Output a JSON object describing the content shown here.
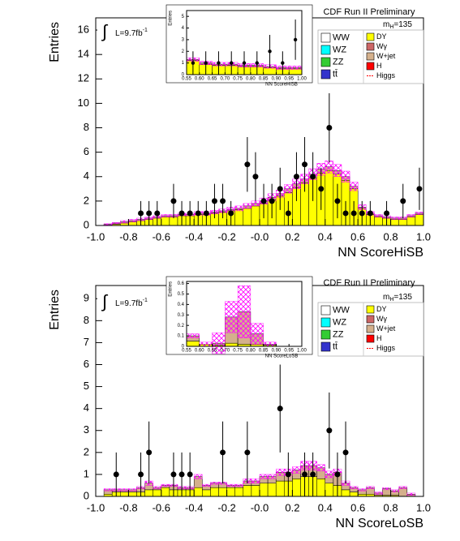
{
  "chart_data": [
    {
      "type": "histogram",
      "title": "CDF Run II Preliminary",
      "ylabel": "Entries",
      "xlabel": "NN ScoreHiSB",
      "integral": "∫",
      "lumi": "L=9.7fb",
      "lumi_exp": "-1",
      "mass": "m",
      "mass_sub": "H",
      "mass_value": "=135",
      "bins": [
        -1,
        -0.95,
        -0.9,
        -0.85,
        -0.8,
        -0.75,
        -0.7,
        -0.65,
        -0.6,
        -0.55,
        -0.5,
        -0.45,
        -0.4,
        -0.35,
        -0.3,
        -0.25,
        -0.2,
        -0.15,
        -0.1,
        -0.05,
        0,
        0.05,
        0.1,
        0.15,
        0.2,
        0.25,
        0.3,
        0.35,
        0.4,
        0.45,
        0.5,
        0.55,
        0.6,
        0.65,
        0.7,
        0.75,
        0.8,
        0.85,
        0.9,
        0.95,
        1
      ],
      "xlim": [
        -1,
        1
      ],
      "ylim": [
        0,
        17
      ],
      "xticks": [
        {
          "value": -1,
          "label": "-1.0"
        },
        -0.8,
        -0.6,
        -0.4,
        -0.2,
        {
          "value": 0,
          "label": "-0.0"
        },
        0.2,
        0.4,
        0.6,
        0.8,
        {
          "value": 1,
          "label": "1.0"
        }
      ],
      "yticks": [
        0,
        2,
        4,
        6,
        8,
        10,
        12,
        14,
        16
      ],
      "series": [
        {
          "color": "#ffff00",
          "values": [
            0,
            0.05,
            0.1,
            0.2,
            0.3,
            0.4,
            0.5,
            0.6,
            0.7,
            0.7,
            0.8,
            0.8,
            0.9,
            0.9,
            1.0,
            1.1,
            1.2,
            1.3,
            1.4,
            1.6,
            1.8,
            2.1,
            2.4,
            2.7,
            3.1,
            3.5,
            3.9,
            4.3,
            4.5,
            4.2,
            3.7,
            3.0,
            1.4,
            0.9,
            0.7,
            0.6,
            0.5,
            0.5,
            0.7,
            0.9
          ]
        },
        {
          "color": "#d4b08c",
          "values": [
            0,
            0.05,
            0.1,
            0.1,
            0.1,
            0.1,
            0.1,
            0.1,
            0.1,
            0.1,
            0.1,
            0.1,
            0.1,
            0.1,
            0.1,
            0.1,
            0.1,
            0.1,
            0.2,
            0.2,
            0.2,
            0.2,
            0.2,
            0.3,
            0.3,
            0.3,
            0.3,
            0.3,
            0.3,
            0.3,
            0.3,
            0.2,
            0.1,
            0.1,
            0.1,
            0.1,
            0.1,
            0.1,
            0.1,
            0.1
          ]
        }
      ],
      "uncertainty": [
        0,
        0.05,
        0.05,
        0.1,
        0.1,
        0.1,
        0.1,
        0.1,
        0.1,
        0.1,
        0.1,
        0.1,
        0.15,
        0.15,
        0.15,
        0.15,
        0.2,
        0.2,
        0.2,
        0.2,
        0.25,
        0.3,
        0.3,
        0.35,
        0.4,
        0.4,
        0.45,
        0.5,
        0.5,
        0.5,
        0.45,
        0.35,
        0.2,
        0.15,
        0.1,
        0.1,
        0.1,
        0.1,
        0.1,
        0.1
      ],
      "data": {
        "x": [
          -0.725,
          -0.675,
          -0.625,
          -0.525,
          -0.475,
          -0.425,
          -0.375,
          -0.325,
          -0.275,
          -0.225,
          -0.175,
          -0.075,
          -0.025,
          0.025,
          0.075,
          0.125,
          0.175,
          0.225,
          0.275,
          0.325,
          0.375,
          0.425,
          0.475,
          0.525,
          0.575,
          0.625,
          0.675,
          0.775,
          0.875,
          0.975
        ],
        "values": [
          1,
          1,
          1,
          2,
          1,
          1,
          1,
          1,
          2,
          2,
          1,
          5,
          4,
          2,
          2,
          3,
          1,
          4,
          5,
          4,
          3,
          8,
          2,
          1,
          1,
          1,
          1,
          1,
          2,
          3
        ],
        "errors": [
          1,
          1,
          1,
          1.41,
          1,
          1,
          1,
          1,
          1.41,
          1.41,
          1,
          2.24,
          2,
          1.41,
          1.41,
          1.73,
          1,
          2,
          2.24,
          2,
          1.73,
          2.83,
          1.41,
          1,
          1,
          1,
          1,
          1,
          1.41,
          1.73
        ]
      },
      "legend": [
        {
          "label": "WW",
          "color": "#ffffff"
        },
        {
          "label": "WZ",
          "color": "#00ffff"
        },
        {
          "label": "ZZ",
          "color": "#33cc33"
        },
        {
          "label": "tt̄",
          "color": "#3333cc"
        },
        {
          "label": "DY",
          "color": "#ffff00"
        },
        {
          "label": "Wγ",
          "color": "#cc6666"
        },
        {
          "label": "W+jet",
          "color": "#d4b08c"
        },
        {
          "label": "H",
          "color": "#ff0000"
        },
        {
          "label": "Higgs",
          "color": "#ff0000",
          "style": "line"
        }
      ],
      "inset": {
        "ylabel": "Entries",
        "xlabel": "NN ScoreHiSB",
        "bins": [
          0.55,
          0.6,
          0.65,
          0.7,
          0.75,
          0.8,
          0.85,
          0.9,
          0.95,
          1
        ],
        "xlim": [
          0.55,
          1
        ],
        "ylim": [
          0,
          5.5
        ],
        "xticks": [
          0.55,
          {
            "value": 0.6,
            "label": "0.60"
          },
          0.65,
          {
            "value": 0.7,
            "label": "0.70"
          },
          0.75,
          {
            "value": 0.8,
            "label": "0.80"
          },
          0.85,
          {
            "value": 0.9,
            "label": "0.90"
          },
          0.95,
          {
            "value": 1,
            "label": "1.00"
          }
        ],
        "yticks": [
          0,
          1,
          2,
          3,
          4,
          5
        ],
        "series": [
          {
            "color": "#ffff00",
            "values": [
              1.2,
              0.9,
              0.8,
              0.8,
              0.7,
              0.7,
              0.6,
              0.5,
              0.5
            ]
          },
          {
            "color": "#d4b08c",
            "values": [
              0.1,
              0.1,
              0.1,
              0.1,
              0.1,
              0.1,
              0.1,
              0.1,
              0.1
            ]
          }
        ],
        "uncertainty": [
          0.15,
          0.15,
          0.15,
          0.15,
          0.15,
          0.15,
          0.15,
          0.15,
          0.15
        ],
        "data": {
          "x": [
            0.575,
            0.625,
            0.675,
            0.725,
            0.775,
            0.825,
            0.875,
            0.925,
            0.975
          ],
          "values": [
            1,
            1,
            1,
            1,
            1,
            1,
            2,
            1,
            3
          ],
          "errors": [
            1,
            1,
            1,
            1,
            1,
            1,
            1.41,
            1,
            1.73
          ]
        }
      }
    },
    {
      "type": "histogram",
      "title": "CDF Run II Preliminary",
      "ylabel": "Entries",
      "xlabel": "NN ScoreLoSB",
      "integral": "∫",
      "lumi": "L=9.7fb",
      "lumi_exp": "-1",
      "mass": "m",
      "mass_sub": "H",
      "mass_value": "=135",
      "bins": [
        -1,
        -0.95,
        -0.9,
        -0.85,
        -0.8,
        -0.75,
        -0.7,
        -0.65,
        -0.6,
        -0.55,
        -0.5,
        -0.45,
        -0.4,
        -0.35,
        -0.3,
        -0.25,
        -0.2,
        -0.15,
        -0.1,
        -0.05,
        0,
        0.05,
        0.1,
        0.15,
        0.2,
        0.25,
        0.3,
        0.35,
        0.4,
        0.45,
        0.5,
        0.55,
        0.6,
        0.65,
        0.7,
        0.75,
        0.8,
        0.85,
        0.9,
        0.95,
        1
      ],
      "xlim": [
        -1,
        1
      ],
      "ylim": [
        0,
        9.6
      ],
      "xticks": [
        {
          "value": -1,
          "label": "-1.0"
        },
        -0.8,
        -0.6,
        -0.4,
        -0.2,
        {
          "value": 0,
          "label": "-0.0"
        },
        0.2,
        0.4,
        0.6,
        0.8,
        {
          "value": 1,
          "label": "1.0"
        }
      ],
      "yticks": [
        0,
        1,
        2,
        3,
        4,
        5,
        6,
        7,
        8,
        9
      ],
      "series": [
        {
          "color": "#ffff00",
          "values": [
            0,
            0.1,
            0.2,
            0.2,
            0.2,
            0.2,
            0.3,
            0.3,
            0.4,
            0.3,
            0.3,
            0.3,
            0.4,
            0.3,
            0.4,
            0.4,
            0.4,
            0.4,
            0.5,
            0.5,
            0.6,
            0.6,
            0.7,
            0.7,
            0.8,
            0.9,
            0.9,
            0.8,
            0.6,
            0.5,
            0.3,
            0.2,
            0.1,
            0.1,
            0.05,
            0.05,
            0.05,
            0,
            0,
            0
          ]
        },
        {
          "color": "#d4b08c",
          "values": [
            0,
            0.2,
            0.1,
            0.1,
            0.1,
            0.2,
            0.3,
            0.1,
            0.1,
            0.2,
            0.1,
            0.1,
            0.5,
            0.2,
            0.2,
            0.2,
            0.1,
            0.1,
            0.2,
            0.2,
            0.3,
            0.3,
            0.4,
            0.4,
            0.4,
            0.5,
            0.5,
            0.5,
            0.4,
            0.6,
            0.3,
            0.2,
            0.2,
            0.3,
            0.1,
            0.3,
            0.2,
            0.4,
            0.1,
            0
          ]
        }
      ],
      "uncertainty": [
        0,
        0.05,
        0.05,
        0.05,
        0.05,
        0.05,
        0.1,
        0.05,
        0.05,
        0.05,
        0.05,
        0.05,
        0.1,
        0.05,
        0.05,
        0.05,
        0.05,
        0.05,
        0.1,
        0.1,
        0.1,
        0.1,
        0.15,
        0.15,
        0.15,
        0.2,
        0.2,
        0.15,
        0.15,
        0.15,
        0.1,
        0.05,
        0.05,
        0.05,
        0.05,
        0.05,
        0.05,
        0.05,
        0.05,
        0
      ],
      "data": {
        "x": [
          -0.875,
          -0.725,
          -0.675,
          -0.525,
          -0.475,
          -0.425,
          -0.225,
          -0.075,
          0.125,
          0.175,
          0.275,
          0.325,
          0.425,
          0.475,
          0.525
        ],
        "values": [
          1,
          1,
          2,
          1,
          1,
          1,
          2,
          2,
          4,
          1,
          1,
          1,
          3,
          1,
          2
        ],
        "errors": [
          1,
          1,
          1.41,
          1,
          1,
          1,
          1.41,
          1.41,
          2,
          1,
          1,
          1,
          1.73,
          1,
          1.41
        ]
      },
      "legend": [
        {
          "label": "WW",
          "color": "#ffffff"
        },
        {
          "label": "WZ",
          "color": "#00ffff"
        },
        {
          "label": "ZZ",
          "color": "#33cc33"
        },
        {
          "label": "tt̄",
          "color": "#3333cc"
        },
        {
          "label": "DY",
          "color": "#ffff00"
        },
        {
          "label": "Wγ",
          "color": "#cc6666"
        },
        {
          "label": "W+jet",
          "color": "#d4b08c"
        },
        {
          "label": "H",
          "color": "#ff0000"
        },
        {
          "label": "Higgs",
          "color": "#ff0000",
          "style": "line"
        }
      ],
      "inset": {
        "ylabel": "Entries",
        "xlabel": "NN ScoreLoSB",
        "bins": [
          0.55,
          0.6,
          0.65,
          0.7,
          0.75,
          0.8,
          0.85,
          0.9,
          0.95,
          1
        ],
        "xlim": [
          0.55,
          1
        ],
        "ylim": [
          0,
          0.62
        ],
        "xticks": [
          0.55,
          {
            "value": 0.6,
            "label": "0.60"
          },
          0.65,
          {
            "value": 0.7,
            "label": "0.70"
          },
          0.75,
          {
            "value": 0.8,
            "label": "0.80"
          },
          0.85,
          {
            "value": 0.9,
            "label": "0.90"
          },
          0.95,
          {
            "value": 1,
            "label": "1.00"
          }
        ],
        "yticks": [
          0,
          0.1,
          0.2,
          0.3,
          0.4,
          0.5,
          0.6
        ],
        "series": [
          {
            "color": "#ffff00",
            "values": [
              0.05,
              0.02,
              0.01,
              0.03,
              0.02,
              0.02,
              0.01,
              0,
              0
            ]
          },
          {
            "color": "#d4b08c",
            "values": [
              0.05,
              0,
              0.02,
              0.25,
              0.31,
              0.1,
              0.01,
              0,
              0
            ]
          }
        ],
        "uncertainty": [
          0.02,
          0.02,
          0.1,
          0.15,
          0.25,
          0.1,
          0.02,
          0,
          0
        ]
      }
    }
  ]
}
